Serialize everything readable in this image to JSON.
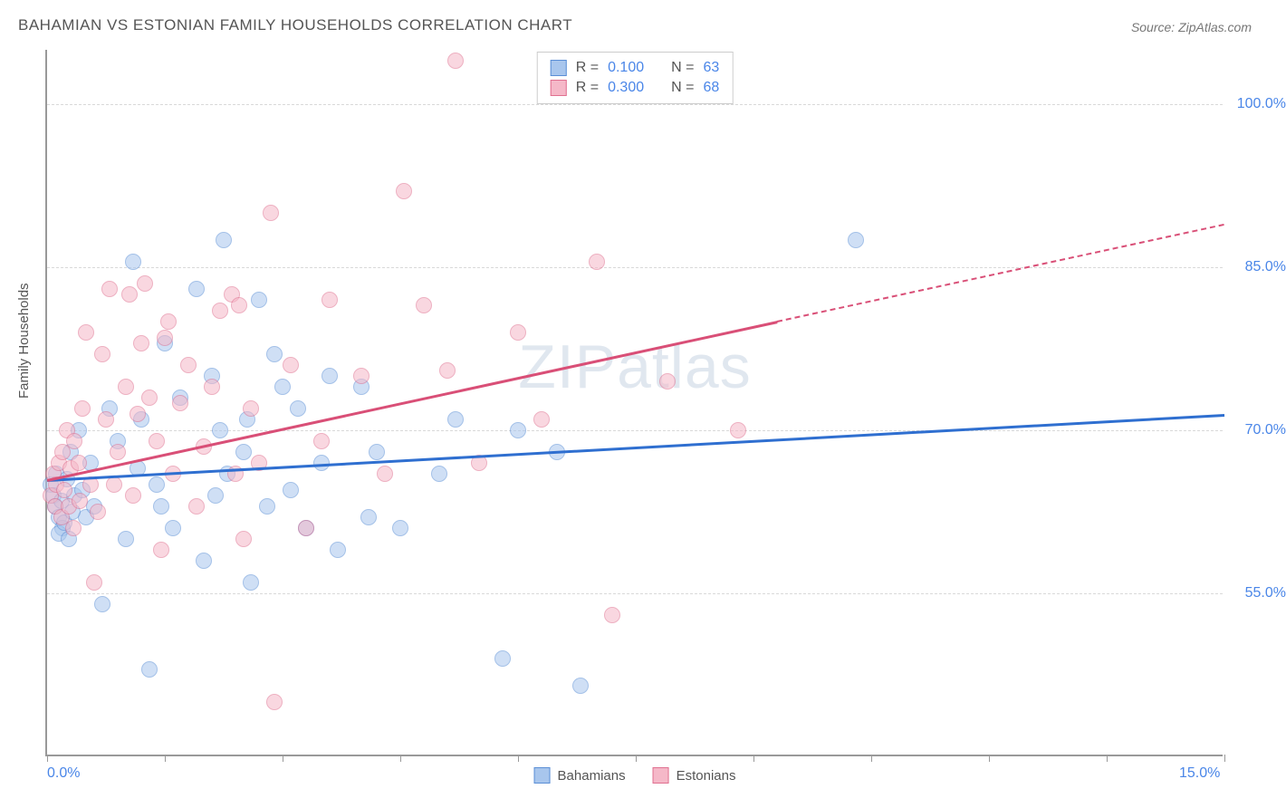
{
  "title": "BAHAMIAN VS ESTONIAN FAMILY HOUSEHOLDS CORRELATION CHART",
  "source": "Source: ZipAtlas.com",
  "ylabel": "Family Households",
  "watermark_bold": "ZIP",
  "watermark_thin": "atlas",
  "chart": {
    "type": "scatter",
    "background_color": "#ffffff",
    "grid_color": "#d9d9d9",
    "axis_color": "#999999",
    "xlim": [
      0,
      15
    ],
    "ylim": [
      40,
      105
    ],
    "xtick_positions": [
      0,
      1.5,
      3,
      4.5,
      6,
      7.5,
      9,
      10.5,
      12,
      13.5,
      15
    ],
    "xtick_labels": {
      "0": "0.0%",
      "15": "15.0%"
    },
    "ytick_positions": [
      55,
      70,
      85,
      100
    ],
    "ytick_labels": {
      "55": "55.0%",
      "70": "70.0%",
      "85": "85.0%",
      "100": "100.0%"
    },
    "point_radius": 9,
    "point_opacity": 0.55,
    "series": [
      {
        "name": "Bahamians",
        "fill": "#a8c6ed",
        "stroke": "#5b8fd6",
        "r_label": "R  =",
        "r_value": "0.100",
        "n_label": "N  =",
        "n_value": "63",
        "trend": {
          "x1": 0,
          "y1": 65.5,
          "x2": 15,
          "y2": 71.5,
          "color": "#2f6fd0"
        },
        "points": [
          [
            0.05,
            65
          ],
          [
            0.08,
            64
          ],
          [
            0.1,
            63
          ],
          [
            0.12,
            66
          ],
          [
            0.15,
            62
          ],
          [
            0.18,
            63.5
          ],
          [
            0.2,
            61
          ],
          [
            0.25,
            65.5
          ],
          [
            0.3,
            68
          ],
          [
            0.35,
            64
          ],
          [
            0.4,
            70
          ],
          [
            0.5,
            62
          ],
          [
            0.55,
            67
          ],
          [
            0.6,
            63
          ],
          [
            0.7,
            54
          ],
          [
            0.8,
            72
          ],
          [
            0.9,
            69
          ],
          [
            1.0,
            60
          ],
          [
            1.1,
            85.5
          ],
          [
            1.2,
            71
          ],
          [
            1.3,
            48
          ],
          [
            1.4,
            65
          ],
          [
            1.5,
            78
          ],
          [
            1.6,
            61
          ],
          [
            1.7,
            73
          ],
          [
            1.9,
            83
          ],
          [
            2.0,
            58
          ],
          [
            2.1,
            75
          ],
          [
            2.2,
            70
          ],
          [
            2.25,
            87.5
          ],
          [
            2.3,
            66
          ],
          [
            2.5,
            68
          ],
          [
            2.6,
            56
          ],
          [
            2.7,
            82
          ],
          [
            2.8,
            63
          ],
          [
            2.9,
            77
          ],
          [
            3.0,
            74
          ],
          [
            3.2,
            72
          ],
          [
            3.3,
            61
          ],
          [
            3.5,
            67
          ],
          [
            3.6,
            75
          ],
          [
            3.7,
            59
          ],
          [
            4.0,
            74
          ],
          [
            4.1,
            62
          ],
          [
            4.2,
            68
          ],
          [
            4.5,
            61
          ],
          [
            5.0,
            66
          ],
          [
            5.2,
            71
          ],
          [
            5.8,
            49
          ],
          [
            6.0,
            70
          ],
          [
            6.5,
            68
          ],
          [
            6.8,
            46.5
          ],
          [
            10.3,
            87.5
          ],
          [
            0.15,
            60.5
          ],
          [
            0.22,
            61.5
          ],
          [
            0.28,
            60
          ],
          [
            0.32,
            62.5
          ],
          [
            0.45,
            64.5
          ],
          [
            1.15,
            66.5
          ],
          [
            1.45,
            63
          ],
          [
            2.15,
            64
          ],
          [
            2.55,
            71
          ],
          [
            3.1,
            64.5
          ]
        ]
      },
      {
        "name": "Estonians",
        "fill": "#f5b8c8",
        "stroke": "#e07090",
        "r_label": "R  =",
        "r_value": "0.300",
        "n_label": "N  =",
        "n_value": "68",
        "trend": {
          "x1": 0,
          "y1": 65.5,
          "x2": 15,
          "y2": 89,
          "color": "#d94f77",
          "solid_until": 9.3
        },
        "points": [
          [
            0.05,
            64
          ],
          [
            0.08,
            66
          ],
          [
            0.1,
            63
          ],
          [
            0.12,
            65
          ],
          [
            0.15,
            67
          ],
          [
            0.18,
            62
          ],
          [
            0.2,
            68
          ],
          [
            0.22,
            64.5
          ],
          [
            0.25,
            70
          ],
          [
            0.28,
            63
          ],
          [
            0.3,
            66.5
          ],
          [
            0.35,
            69
          ],
          [
            0.4,
            67
          ],
          [
            0.45,
            72
          ],
          [
            0.5,
            79
          ],
          [
            0.55,
            65
          ],
          [
            0.6,
            56
          ],
          [
            0.7,
            77
          ],
          [
            0.75,
            71
          ],
          [
            0.8,
            83
          ],
          [
            0.9,
            68
          ],
          [
            1.0,
            74
          ],
          [
            1.05,
            82.5
          ],
          [
            1.1,
            64
          ],
          [
            1.15,
            71.5
          ],
          [
            1.2,
            78
          ],
          [
            1.25,
            83.5
          ],
          [
            1.3,
            73
          ],
          [
            1.4,
            69
          ],
          [
            1.45,
            59
          ],
          [
            1.5,
            78.5
          ],
          [
            1.55,
            80
          ],
          [
            1.6,
            66
          ],
          [
            1.7,
            72.5
          ],
          [
            1.8,
            76
          ],
          [
            1.9,
            63
          ],
          [
            2.0,
            68.5
          ],
          [
            2.1,
            74
          ],
          [
            2.2,
            81
          ],
          [
            2.35,
            82.5
          ],
          [
            2.4,
            66
          ],
          [
            2.45,
            81.5
          ],
          [
            2.5,
            60
          ],
          [
            2.6,
            72
          ],
          [
            2.7,
            67
          ],
          [
            2.85,
            90
          ],
          [
            2.9,
            45
          ],
          [
            3.1,
            76
          ],
          [
            3.3,
            61
          ],
          [
            3.5,
            69
          ],
          [
            3.6,
            82
          ],
          [
            4.0,
            75
          ],
          [
            4.3,
            66
          ],
          [
            4.55,
            92
          ],
          [
            4.8,
            81.5
          ],
          [
            5.1,
            75.5
          ],
          [
            5.2,
            104
          ],
          [
            5.5,
            67
          ],
          [
            6.0,
            79
          ],
          [
            6.3,
            71
          ],
          [
            7.0,
            85.5
          ],
          [
            7.2,
            53
          ],
          [
            7.9,
            74.5
          ],
          [
            8.8,
            70
          ],
          [
            0.33,
            61
          ],
          [
            0.42,
            63.5
          ],
          [
            0.65,
            62.5
          ],
          [
            0.85,
            65
          ]
        ]
      }
    ]
  },
  "axis_label_color": "#4a86e8",
  "label_fontsize": 16,
  "title_fontsize": 17
}
